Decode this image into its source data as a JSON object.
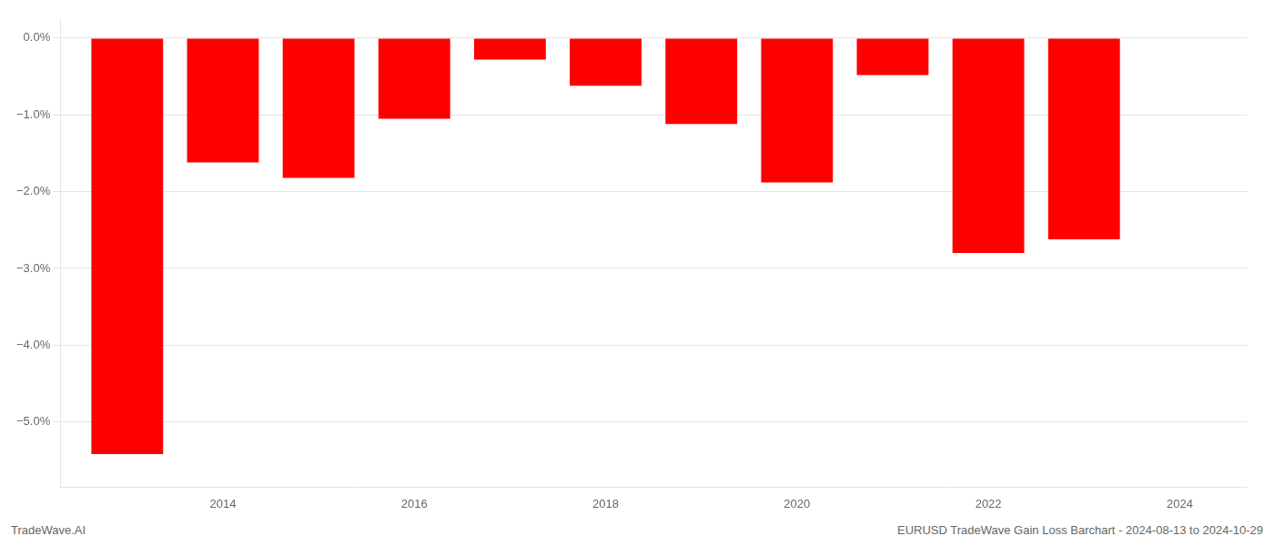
{
  "chart_data": {
    "type": "bar",
    "x": [
      2013,
      2014,
      2015,
      2016,
      2017,
      2018,
      2019,
      2020,
      2021,
      2022,
      2023
    ],
    "values": [
      -5.42,
      -1.62,
      -1.82,
      -1.05,
      -0.28,
      -0.62,
      -1.12,
      -1.88,
      -0.48,
      -2.8,
      -2.62
    ],
    "color": "#ff0000",
    "xlim": [
      2012.3,
      2024.7
    ],
    "xticks": [
      2014,
      2016,
      2018,
      2020,
      2022,
      2024
    ],
    "ylim": [
      -5.85,
      0.25
    ],
    "yticks": [
      {
        "value": 0.0,
        "label": "0.0%"
      },
      {
        "value": -1.0,
        "label": "−1.0%"
      },
      {
        "value": -2.0,
        "label": "−2.0%"
      },
      {
        "value": -3.0,
        "label": "−3.0%"
      },
      {
        "value": -4.0,
        "label": "−4.0%"
      },
      {
        "value": -5.0,
        "label": "−5.0%"
      }
    ],
    "grid": "y",
    "annotations": [
      "TradeWave.AI",
      "EURUSD TradeWave Gain Loss Barchart - 2024-08-13 to 2024-10-29"
    ]
  }
}
